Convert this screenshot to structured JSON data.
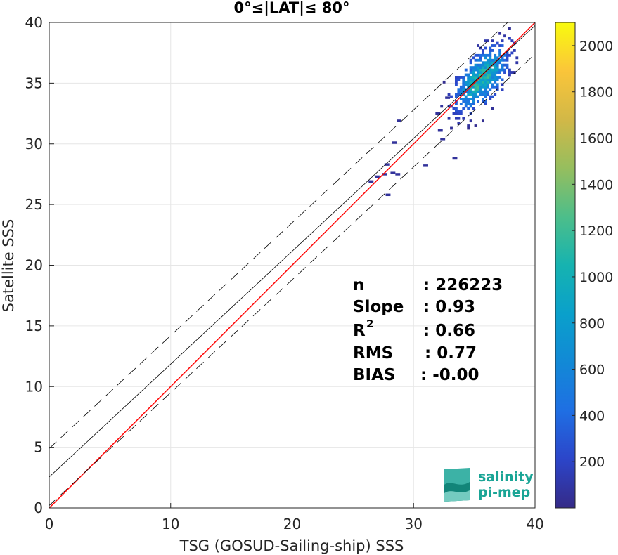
{
  "chart_data": {
    "type": "heatmap",
    "title": "0°≤|LAT|≤ 80°",
    "xlabel": "TSG (GOSUD-Sailing-ship) SSS",
    "ylabel": "Satellite SSS",
    "xlim": [
      0,
      40
    ],
    "ylim": [
      0,
      40
    ],
    "xticks": [
      0,
      10,
      20,
      30,
      40
    ],
    "yticks": [
      0,
      5,
      10,
      15,
      20,
      25,
      30,
      35,
      40
    ],
    "grid": true,
    "colorbar": {
      "range": [
        0,
        2100
      ],
      "ticks": [
        200,
        400,
        600,
        800,
        1000,
        1200,
        1400,
        1600,
        1800,
        2000
      ],
      "colormap": "parula"
    },
    "lines": [
      {
        "name": "identity",
        "style": "solid",
        "color": "#ff0000",
        "x": [
          0,
          40
        ],
        "y": [
          0,
          40
        ]
      },
      {
        "name": "fit",
        "style": "solid",
        "color": "#000000",
        "x": [
          0,
          40
        ],
        "y": [
          2.55,
          39.75
        ]
      },
      {
        "name": "fit-upper",
        "style": "dashed",
        "color": "#000000",
        "x": [
          0,
          40
        ],
        "y": [
          4.9,
          42.1
        ]
      },
      {
        "name": "fit-lower",
        "style": "dashed",
        "color": "#000000",
        "x": [
          0,
          40
        ],
        "y": [
          0.2,
          37.4
        ]
      }
    ],
    "cluster": {
      "center": [
        35.5,
        35.3
      ],
      "spread": [
        1.6,
        1.9
      ]
    },
    "stats": [
      {
        "key": "n",
        "sup": "",
        "value": ": 226223"
      },
      {
        "key": "Slope",
        "sup": "",
        "value": ": 0.93"
      },
      {
        "key": "R",
        "sup": "2",
        "value": ": 0.66"
      },
      {
        "key": "RMS",
        "sup": "",
        "value": ": 0.77"
      },
      {
        "key": "BIAS",
        "sup": "",
        "value": ": -0.00"
      }
    ]
  },
  "logo": {
    "line1": "salinity",
    "line2": "pi-mep"
  }
}
